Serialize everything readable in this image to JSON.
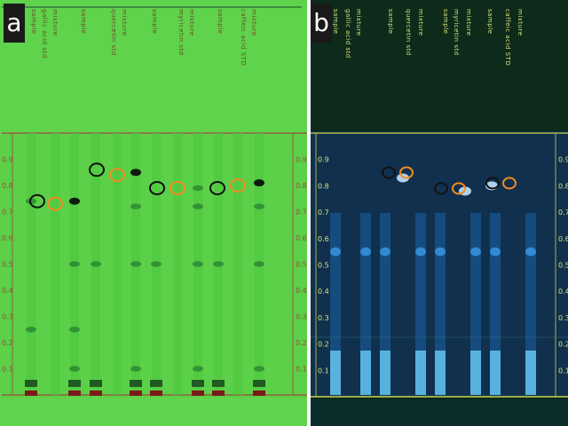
{
  "panel_a": {
    "letter": "a",
    "lane_labels": [
      "sample",
      "gallic acid std",
      "mixture",
      "sample",
      "quercetin std",
      "mixture",
      "sample",
      "myricetin std",
      "mixture",
      "sample",
      "caffeic acid STD",
      "mixture"
    ],
    "rf_ticks_left": [
      "0.9",
      "0.8",
      "0.7",
      "0.6",
      "0.5",
      "0.4",
      "0.3",
      "0.2",
      "0.1"
    ],
    "rf_ticks_right": [
      "0.9",
      "0.8",
      "0.7",
      "0.6",
      "0.5",
      "0.4",
      "0.3",
      "0.2",
      "0.1"
    ]
  },
  "panel_b": {
    "letter": "b",
    "lane_labels": [
      "sample",
      "gallic acid std",
      "mixture",
      "sample",
      "quercetin std",
      "mixture",
      "sample",
      "myricetin std",
      "mixture",
      "sample",
      "caffeic acid STD",
      "mixture"
    ],
    "rf_ticks_left": [
      "0.9",
      "0.8",
      "0.7",
      "0.6",
      "0.5",
      "0.4",
      "0.3",
      "0.2",
      "0.1"
    ],
    "rf_ticks_right": [
      "0.9",
      "0.8",
      "0.7",
      "0.6",
      "0.5",
      "0.4",
      "0.3",
      "0.2",
      "0.1"
    ]
  },
  "colors": {
    "plate_a": "#5ad145",
    "plate_b": "#0b2a1a",
    "circle_sample": "#111111",
    "circle_std": "#f28c1e"
  }
}
